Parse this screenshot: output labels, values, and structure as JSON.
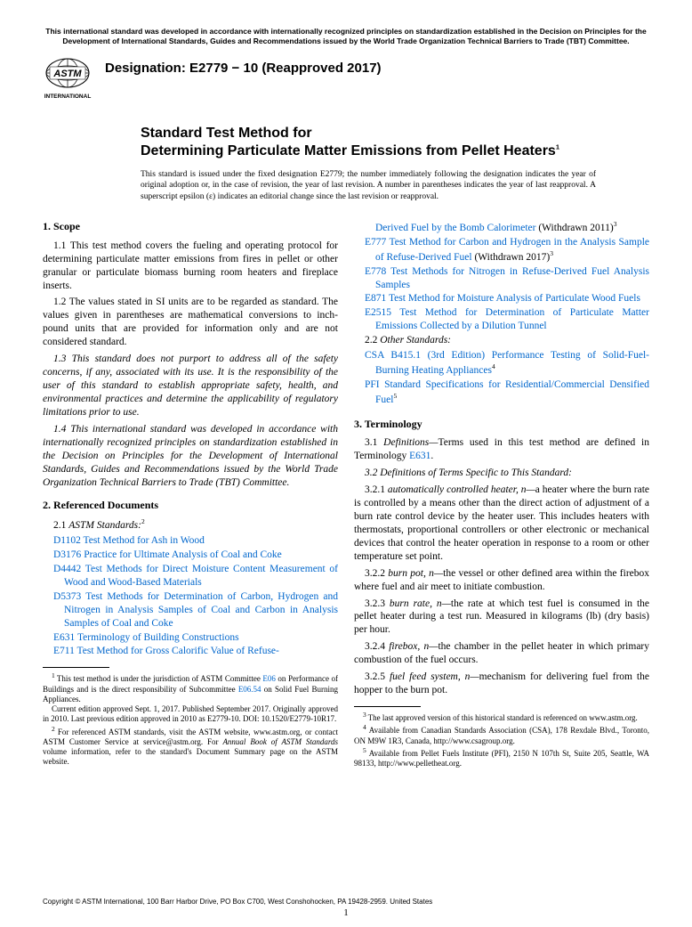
{
  "top_notice": "This international standard was developed in accordance with internationally recognized principles on standardization established in the Decision on Principles for the Development of International Standards, Guides and Recommendations issued by the World Trade Organization Technical Barriers to Trade (TBT) Committee.",
  "designation": "Designation: E2779 − 10 (Reapproved 2017)",
  "title_line1": "Standard Test Method for",
  "title_line2": "Determining Particulate Matter Emissions from Pellet Heaters",
  "title_sup": "1",
  "issuance": "This standard is issued under the fixed designation E2779; the number immediately following the designation indicates the year of original adoption or, in the case of revision, the year of last revision. A number in parentheses indicates the year of last reapproval. A superscript epsilon (ε) indicates an editorial change since the last revision or reapproval.",
  "s1_head": "1. Scope",
  "s1_1": "1.1 This test method covers the fueling and operating protocol for determining particulate matter emissions from fires in pellet or other granular or particulate biomass burning room heaters and fireplace inserts.",
  "s1_2": "1.2 The values stated in SI units are to be regarded as standard. The values given in parentheses are mathematical conversions to inch-pound units that are provided for information only and are not considered standard.",
  "s1_3": "1.3 This standard does not purport to address all of the safety concerns, if any, associated with its use. It is the responsibility of the user of this standard to establish appropriate safety, health, and environmental practices and determine the applicability of regulatory limitations prior to use.",
  "s1_4": "1.4 This international standard was developed in accordance with internationally recognized principles on standardization established in the Decision on Principles for the Development of International Standards, Guides and Recommendations issued by the World Trade Organization Technical Barriers to Trade (TBT) Committee.",
  "s2_head": "2. Referenced Documents",
  "s2_1_label": "2.1 ",
  "s2_1_text": "ASTM Standards:",
  "s2_1_sup": "2",
  "refs_left": [
    {
      "code": "D1102",
      "text": " Test Method for Ash in Wood"
    },
    {
      "code": "D3176",
      "text": " Practice for Ultimate Analysis of Coal and Coke"
    },
    {
      "code": "D4442",
      "text": " Test Methods for Direct Moisture Content Measurement of Wood and Wood-Based Materials"
    },
    {
      "code": "D5373",
      "text": " Test Methods for Determination of Carbon, Hydrogen and Nitrogen in Analysis Samples of Coal and Carbon in Analysis Samples of Coal and Coke"
    },
    {
      "code": "E631",
      "text": " Terminology of Building Constructions"
    },
    {
      "code": "E711",
      "text": " Test Method for Gross Calorific Value of Refuse-"
    }
  ],
  "fn1": "This test method is under the jurisdiction of ASTM Committee E06 on Performance of Buildings and is the direct responsibility of Subcommittee E06.54 on Solid Fuel Burning Appliances.",
  "fn1b": "Current edition approved Sept. 1, 2017. Published September 2017. Originally approved in 2010. Last previous edition approved in 2010 as E2779-10. DOI: 10.1520/E2779-10R17.",
  "fn2": "For referenced ASTM standards, visit the ASTM website, www.astm.org, or contact ASTM Customer Service at service@astm.org. For Annual Book of ASTM Standards volume information, refer to the standard's Document Summary page on the ASTM website.",
  "e711_cont": "Derived Fuel by the Bomb Calorimeter",
  "e711_with": " (Withdrawn 2011)",
  "e711_sup": "3",
  "refs_right": [
    {
      "code": "E777",
      "text": " Test Method for Carbon and Hydrogen in the Analysis Sample of Refuse-Derived Fuel",
      "suffix": " (Withdrawn 2017)",
      "sup": "3"
    },
    {
      "code": "E778",
      "text": " Test Methods for Nitrogen in Refuse-Derived Fuel Analysis Samples"
    },
    {
      "code": "E871",
      "text": " Test Method for Moisture Analysis of Particulate Wood Fuels"
    },
    {
      "code": "E2515",
      "text": " Test Method for Determination of Particulate Matter Emissions Collected by a Dilution Tunnel"
    }
  ],
  "s2_2_label": "2.2 ",
  "s2_2_text": "Other Standards:",
  "csa_code": "CSA B415.1",
  "csa_text": " (3rd Edition) Performance Testing of Solid-Fuel-Burning Heating Appliances",
  "csa_sup": "4",
  "pfi_code": "PFI",
  "pfi_text": " Standard Specifications for Residential/Commercial Densified Fuel",
  "pfi_sup": "5",
  "s3_head": "3. Terminology",
  "s3_1a": "3.1 ",
  "s3_1b": "Definitions—",
  "s3_1c": "Terms used in this test method are defined in Terminology ",
  "s3_1d": "E631",
  "s3_1e": ".",
  "s3_2": "3.2 Definitions of Terms Specific to This Standard:",
  "s3_2_1a": "3.2.1 ",
  "s3_2_1b": "automatically controlled heater, n—",
  "s3_2_1c": "a heater where the burn rate is controlled by a means other than the direct action of adjustment of a burn rate control device by the heater user. This includes heaters with thermostats, proportional controllers or other electronic or mechanical devices that control the heater operation in response to a room or other temperature set point.",
  "s3_2_2a": "3.2.2 ",
  "s3_2_2b": "burn pot, n—",
  "s3_2_2c": "the vessel or other defined area within the firebox where fuel and air meet to initiate combustion.",
  "s3_2_3a": "3.2.3 ",
  "s3_2_3b": "burn rate, n—",
  "s3_2_3c": "the rate at which test fuel is consumed in the pellet heater during a test run. Measured in kilograms (lb) (dry basis) per hour.",
  "s3_2_4a": "3.2.4 ",
  "s3_2_4b": "firebox, n—",
  "s3_2_4c": "the chamber in the pellet heater in which primary combustion of the fuel occurs.",
  "s3_2_5a": "3.2.5 ",
  "s3_2_5b": "fuel feed system, n—",
  "s3_2_5c": "mechanism for delivering fuel from the hopper to the burn pot.",
  "fn3": "The last approved version of this historical standard is referenced on www.astm.org.",
  "fn4": "Available from Canadian Standards Association (CSA), 178 Rexdale Blvd., Toronto, ON M9W 1R3, Canada, http://www.csagroup.org.",
  "fn5": "Available from Pellet Fuels Institute (PFI), 2150 N 107th St, Suite 205, Seattle, WA 98133, http://www.pelletheat.org.",
  "copyright": "Copyright © ASTM International, 100 Barr Harbor Drive, PO Box C700, West Conshohocken, PA 19428-2959. United States",
  "page": "1",
  "logo_label": "INTERNATIONAL",
  "link_color": "#0066cc"
}
